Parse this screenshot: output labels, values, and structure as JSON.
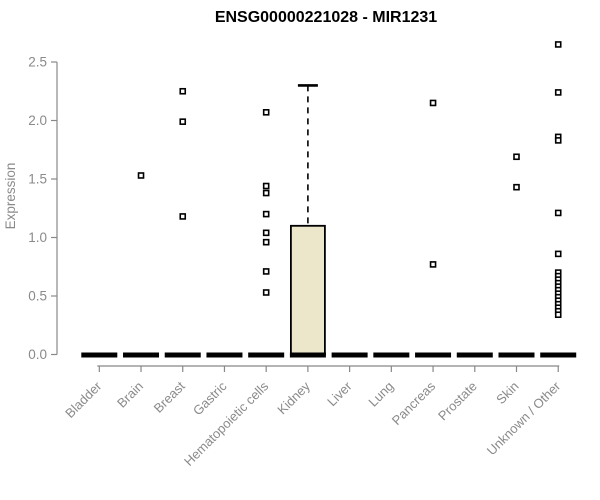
{
  "chart_data": {
    "type": "boxplot",
    "title": "ENSG00000221028 - MIR1231",
    "xlabel": "",
    "ylabel": "Expression",
    "ylim": [
      0,
      2.72
    ],
    "yticks": [
      "0.0",
      "0.5",
      "1.0",
      "1.5",
      "2.0",
      "2.5"
    ],
    "ytick_values": [
      0,
      0.5,
      1.0,
      1.5,
      2.0,
      2.5
    ],
    "grid": false,
    "legend": false,
    "categories": [
      "Bladder",
      "Brain",
      "Breast",
      "Gastric",
      "Hematopoietic cells",
      "Kidney",
      "Liver",
      "Lung",
      "Pancreas",
      "Prostate",
      "Skin",
      "Unknown / Other"
    ],
    "boxes": [
      {
        "category": "Bladder",
        "low": 0,
        "q1": 0,
        "median": 0,
        "q3": 0,
        "high": 0
      },
      {
        "category": "Brain",
        "low": 0,
        "q1": 0,
        "median": 0,
        "q3": 0,
        "high": 0
      },
      {
        "category": "Breast",
        "low": 0,
        "q1": 0,
        "median": 0,
        "q3": 0,
        "high": 0
      },
      {
        "category": "Gastric",
        "low": 0,
        "q1": 0,
        "median": 0,
        "q3": 0,
        "high": 0
      },
      {
        "category": "Hematopoietic cells",
        "low": 0,
        "q1": 0,
        "median": 0,
        "q3": 0,
        "high": 0
      },
      {
        "category": "Kidney",
        "low": 0,
        "q1": 0,
        "median": 0,
        "q3": 1.1,
        "high": 2.3
      },
      {
        "category": "Liver",
        "low": 0,
        "q1": 0,
        "median": 0,
        "q3": 0,
        "high": 0
      },
      {
        "category": "Lung",
        "low": 0,
        "q1": 0,
        "median": 0,
        "q3": 0,
        "high": 0
      },
      {
        "category": "Pancreas",
        "low": 0,
        "q1": 0,
        "median": 0,
        "q3": 0,
        "high": 0
      },
      {
        "category": "Prostate",
        "low": 0,
        "q1": 0,
        "median": 0,
        "q3": 0,
        "high": 0
      },
      {
        "category": "Skin",
        "low": 0,
        "q1": 0,
        "median": 0,
        "q3": 0,
        "high": 0
      },
      {
        "category": "Unknown / Other",
        "low": 0,
        "q1": 0,
        "median": 0,
        "q3": 0,
        "high": 0
      }
    ],
    "outliers": [
      {
        "category": "Bladder",
        "values": []
      },
      {
        "category": "Brain",
        "values": [
          1.53
        ]
      },
      {
        "category": "Breast",
        "values": [
          2.25,
          1.99,
          1.18
        ]
      },
      {
        "category": "Gastric",
        "values": []
      },
      {
        "category": "Hematopoietic cells",
        "values": [
          2.07,
          1.44,
          1.38,
          1.2,
          1.04,
          0.96,
          0.71,
          0.53
        ]
      },
      {
        "category": "Kidney",
        "values": []
      },
      {
        "category": "Liver",
        "values": []
      },
      {
        "category": "Lung",
        "values": []
      },
      {
        "category": "Pancreas",
        "values": [
          2.15,
          0.77
        ]
      },
      {
        "category": "Prostate",
        "values": []
      },
      {
        "category": "Skin",
        "values": [
          1.69,
          1.43
        ]
      },
      {
        "category": "Unknown / Other",
        "values": [
          2.65,
          2.24,
          1.86,
          1.83,
          1.21,
          0.86,
          0.7,
          0.67,
          0.64,
          0.61,
          0.58,
          0.55,
          0.52,
          0.49,
          0.46,
          0.43,
          0.4,
          0.37,
          0.34
        ]
      }
    ],
    "colors": {
      "box_fill": "#ECE7CB",
      "box_border": "#000000",
      "median": "#000000",
      "whisker": "#000000",
      "point": "#000000",
      "point_fill": "#ffffff",
      "axis": "#888888",
      "tick_label": "#8a8a8a",
      "title": "#000000",
      "background": "#ffffff"
    }
  }
}
